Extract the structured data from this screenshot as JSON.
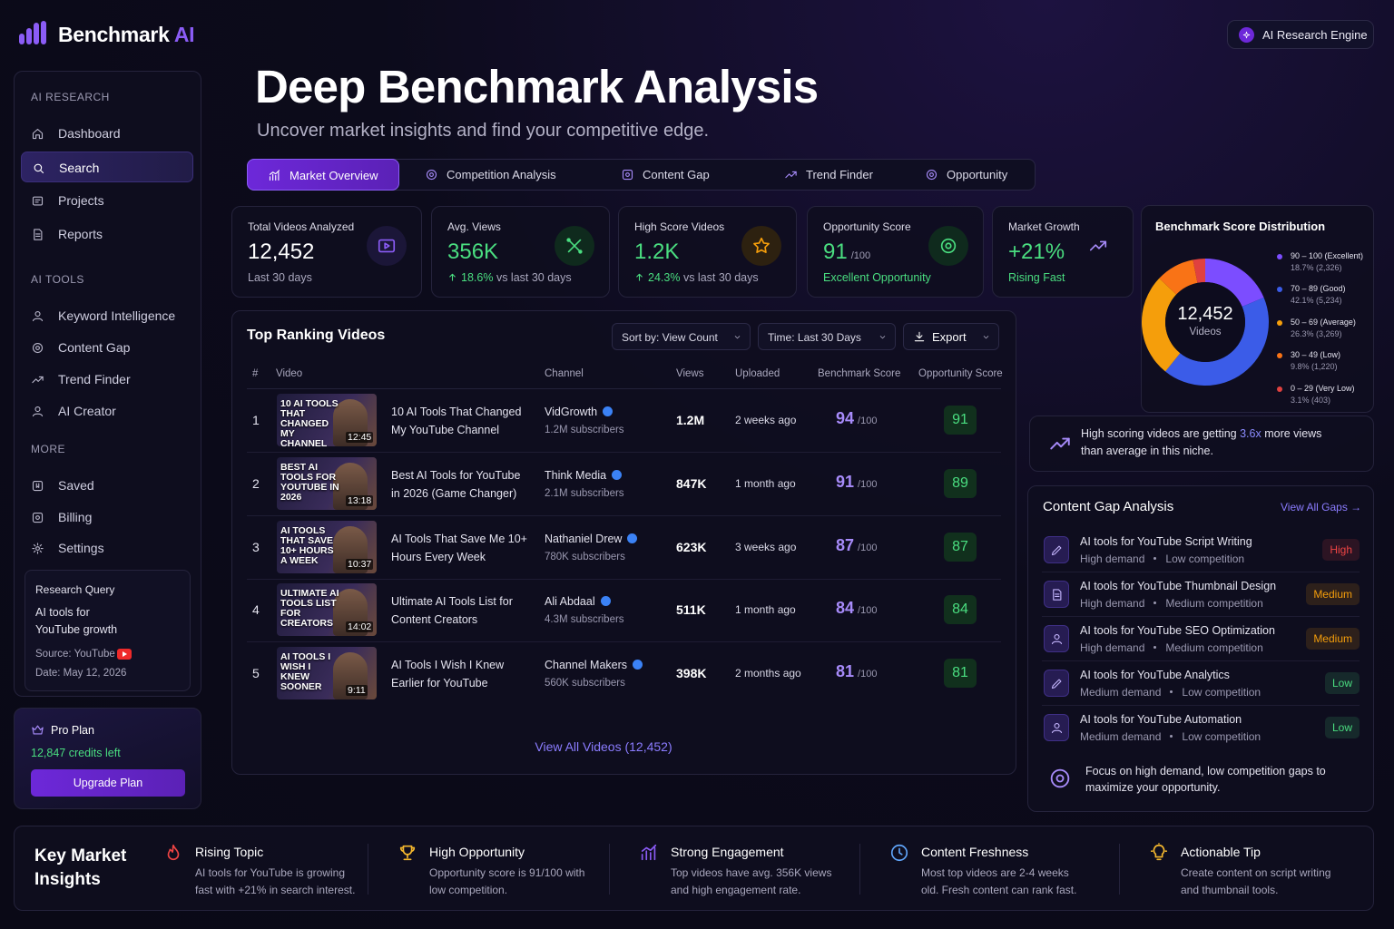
{
  "brand": {
    "name": "Benchmark",
    "accent": "AI"
  },
  "engine_badge": "AI Research Engine",
  "sidebar": {
    "sections": [
      {
        "title": "AI RESEARCH",
        "items": [
          "Dashboard",
          "Search",
          "Projects",
          "Reports"
        ]
      },
      {
        "title": "AI TOOLS",
        "items": [
          "Keyword Intelligence",
          "Content Gap",
          "Trend Finder",
          "AI Creator"
        ]
      },
      {
        "title": "MORE",
        "items": [
          "Saved",
          "Billing",
          "Settings"
        ]
      }
    ],
    "active": {
      "section": 0,
      "item": 1
    },
    "research_query": {
      "title": "Research Query",
      "query": "AI tools for YouTube growth",
      "source": "Source: YouTube",
      "date": "Date: May 12, 2026"
    },
    "plan": {
      "name": "Pro Plan",
      "credits": "12,847 credits left",
      "button": "Upgrade Plan"
    }
  },
  "header": {
    "title": "Deep Benchmark Analysis",
    "subtitle": "Uncover market insights and find your competitive edge."
  },
  "tabs": {
    "items": [
      "Market Overview",
      "Competition Analysis",
      "Content Gap",
      "Trend Finder",
      "Opportunity"
    ],
    "active": 0
  },
  "stats": [
    {
      "label": "Total Videos Analyzed",
      "value": "12,452",
      "note": "Last 30 days"
    },
    {
      "label": "Avg. Views",
      "value": "356K",
      "change": "18.6%",
      "note": "vs last 30 days"
    },
    {
      "label": "High Score Videos",
      "value": "1.2K",
      "change": "24.3%",
      "note": "vs last 30 days"
    },
    {
      "label": "Opportunity Score",
      "value": "91",
      "unit": "/100",
      "note": "Excellent Opportunity"
    },
    {
      "label": "Market Growth",
      "value": "+21%",
      "note": "Rising Fast"
    }
  ],
  "chart_data": {
    "type": "donut",
    "title": "Benchmark Score Distribution",
    "center_value": "12,452",
    "center_label": "Videos",
    "categories": [
      "90 – 100 (Excellent)",
      "70 – 89 (Good)",
      "50 – 69 (Average)",
      "30 – 49 (Low)",
      "0 – 29 (Very Low)"
    ],
    "values": [
      18.7,
      42.1,
      26.3,
      9.8,
      3.1
    ],
    "value_labels": [
      "18.7% (2,326)",
      "42.1% (5,234)",
      "26.3% (3,269)",
      "9.8% (1,220)",
      "3.1% (403)"
    ],
    "colors": [
      "#7c4dff",
      "#3b5ce8",
      "#f59e0b",
      "#f97316",
      "#e0413f"
    ]
  },
  "insight": {
    "text_before": "High scoring videos are getting ",
    "highlight": "3.6x",
    "text_after": " more views than average in this niche."
  },
  "videos": {
    "title": "Top Ranking Videos",
    "controls": {
      "sort": "Sort by: View Count",
      "time": "Time: Last 30 Days",
      "export": "Export"
    },
    "columns": [
      "#",
      "Video",
      "Channel",
      "Views",
      "Uploaded",
      "Benchmark Score",
      "Opportunity Score"
    ],
    "score_suffix": "/100",
    "rows": [
      {
        "rank": 1,
        "thumb": "10 AI TOOLS THAT CHANGED MY CHANNEL",
        "duration": "12:45",
        "title": "10 AI Tools That Changed My YouTube Channel",
        "channel": "VidGrowth",
        "subscribers": "1.2M subscribers",
        "views": "1.2M",
        "uploaded": "2 weeks ago",
        "score": 94,
        "opportunity": 91
      },
      {
        "rank": 2,
        "thumb": "BEST AI TOOLS FOR YOUTUBE IN 2026",
        "duration": "13:18",
        "title": "Best AI Tools for YouTube in 2026 (Game Changer)",
        "channel": "Think Media",
        "subscribers": "2.1M subscribers",
        "views": "847K",
        "uploaded": "1 month ago",
        "score": 91,
        "opportunity": 89
      },
      {
        "rank": 3,
        "thumb": "AI TOOLS THAT SAVE 10+ HOURS A WEEK",
        "duration": "10:37",
        "title": "AI Tools That Save Me 10+ Hours Every Week",
        "channel": "Nathaniel Drew",
        "subscribers": "780K subscribers",
        "views": "623K",
        "uploaded": "3 weeks ago",
        "score": 87,
        "opportunity": 87
      },
      {
        "rank": 4,
        "thumb": "ULTIMATE AI TOOLS LIST FOR CREATORS",
        "duration": "14:02",
        "title": "Ultimate AI Tools List for Content Creators",
        "channel": "Ali Abdaal",
        "subscribers": "4.3M subscribers",
        "views": "511K",
        "uploaded": "1 month ago",
        "score": 84,
        "opportunity": 84
      },
      {
        "rank": 5,
        "thumb": "AI TOOLS I WISH I KNEW SOONER",
        "duration": "9:11",
        "title": "AI Tools I Wish I Knew Earlier for YouTube",
        "channel": "Channel Makers",
        "subscribers": "560K subscribers",
        "views": "398K",
        "uploaded": "2 months ago",
        "score": 81,
        "opportunity": 81
      }
    ],
    "view_all": "View All Videos (12,452)"
  },
  "content_gap": {
    "title": "Content Gap Analysis",
    "link": "View All Gaps →",
    "items": [
      {
        "title": "AI tools for YouTube Script Writing",
        "demand": "High demand",
        "competition": "Low competition",
        "level": "High",
        "color": "#ef4444"
      },
      {
        "title": "AI tools for YouTube Thumbnail Design",
        "demand": "High demand",
        "competition": "Medium competition",
        "level": "Medium",
        "color": "#f59e0b"
      },
      {
        "title": "AI tools for YouTube SEO Optimization",
        "demand": "High demand",
        "competition": "Medium competition",
        "level": "Medium",
        "color": "#f59e0b"
      },
      {
        "title": "AI tools for YouTube Analytics",
        "demand": "Medium demand",
        "competition": "Low competition",
        "level": "Low",
        "color": "#4ade80"
      },
      {
        "title": "AI tools for YouTube Automation",
        "demand": "Medium demand",
        "competition": "Low competition",
        "level": "Low",
        "color": "#4ade80"
      }
    ],
    "footer": "Focus on high demand, low competition gaps to maximize your opportunity."
  },
  "key_insights": {
    "title": "Key Market Insights",
    "items": [
      {
        "title": "Rising Topic",
        "text": "AI tools for YouTube is growing fast with +21% in search interest."
      },
      {
        "title": "High Opportunity",
        "text": "Opportunity score is 91/100 with low competition."
      },
      {
        "title": "Strong Engagement",
        "text": "Top videos have avg. 356K views and high engagement rate."
      },
      {
        "title": "Content Freshness",
        "text": "Most top videos are 2-4 weeks old. Fresh content can rank fast."
      },
      {
        "title": "Actionable Tip",
        "text": "Create content on script writing and thumbnail tools."
      }
    ]
  }
}
